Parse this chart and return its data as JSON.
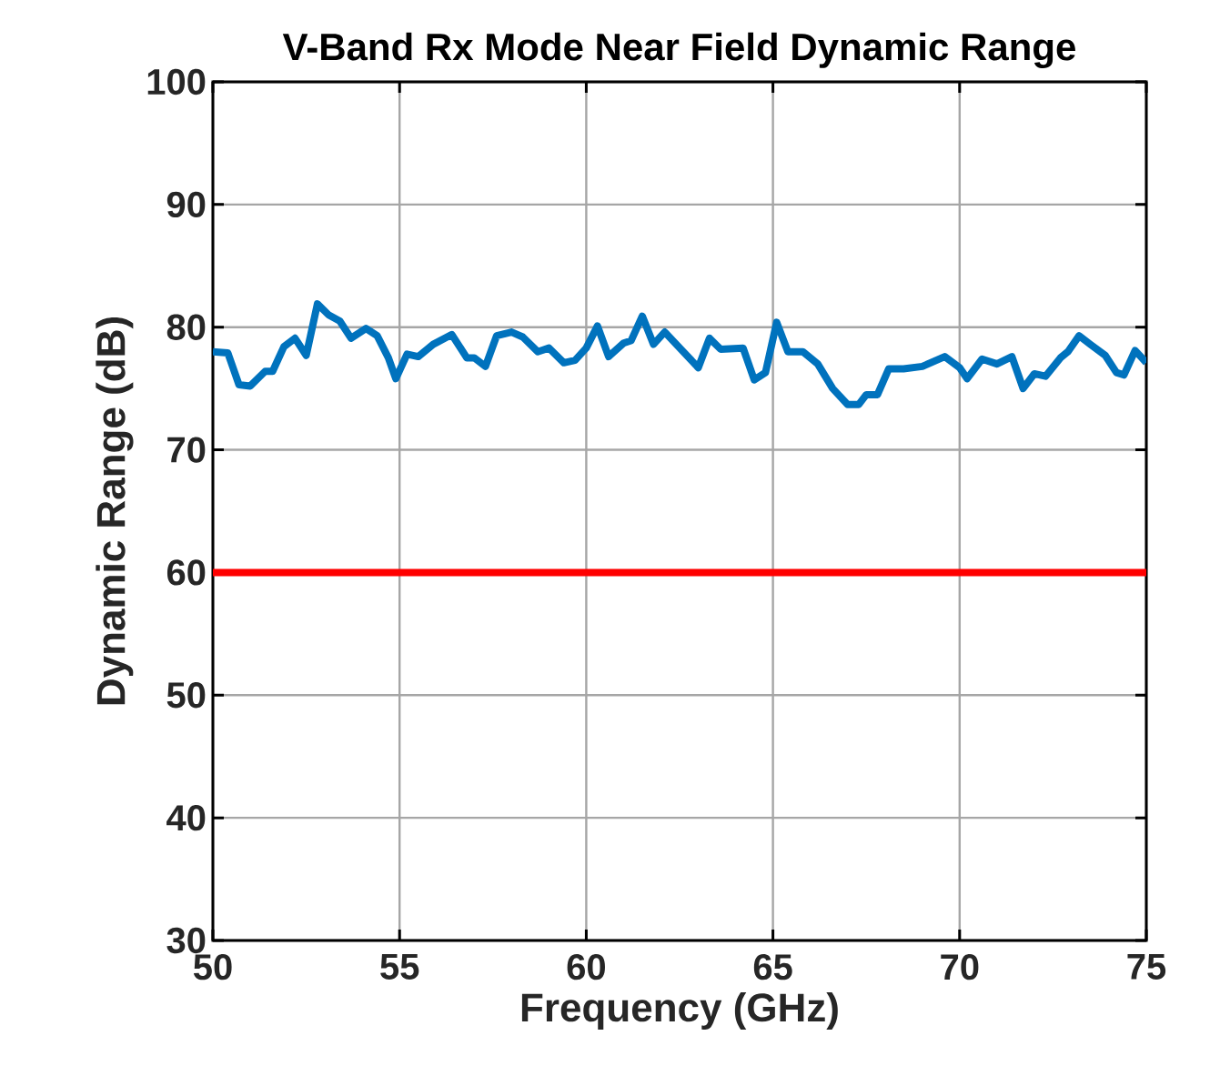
{
  "chart_data": {
    "type": "line",
    "title": "V-Band Rx Mode Near Field Dynamic Range",
    "xlabel": "Frequency (GHz)",
    "ylabel": "Dynamic Range (dB)",
    "xlim": [
      50,
      75
    ],
    "ylim": [
      30,
      100
    ],
    "xticks": [
      50,
      55,
      60,
      65,
      70,
      75
    ],
    "yticks": [
      30,
      40,
      50,
      60,
      70,
      80,
      90,
      100
    ],
    "grid": true,
    "ref_lines": [
      {
        "axis": "y",
        "value": 60,
        "color": "#ff0000"
      }
    ],
    "series": [
      {
        "color": "#0072bd",
        "x": [
          50.0,
          50.4,
          50.7,
          51.0,
          51.4,
          51.6,
          51.9,
          52.2,
          52.5,
          52.8,
          53.1,
          53.4,
          53.7,
          54.1,
          54.4,
          54.7,
          54.9,
          55.2,
          55.5,
          55.9,
          56.4,
          56.8,
          57.0,
          57.3,
          57.6,
          58.0,
          58.3,
          58.7,
          59.0,
          59.4,
          59.7,
          60.0,
          60.3,
          60.6,
          61.0,
          61.2,
          61.5,
          61.8,
          62.1,
          62.6,
          63.0,
          63.3,
          63.6,
          64.2,
          64.5,
          64.8,
          65.1,
          65.4,
          65.8,
          66.2,
          66.6,
          67.0,
          67.3,
          67.5,
          67.8,
          68.1,
          68.5,
          69.0,
          69.6,
          70.0,
          70.2,
          70.6,
          71.0,
          71.4,
          71.7,
          72.0,
          72.3,
          72.7,
          72.9,
          73.2,
          73.5,
          73.9,
          74.2,
          74.4,
          74.7,
          75.0
        ],
        "values": [
          78.0,
          77.9,
          75.3,
          75.2,
          76.4,
          76.4,
          78.4,
          79.1,
          77.7,
          81.9,
          81.0,
          80.5,
          79.1,
          79.9,
          79.3,
          77.5,
          75.8,
          77.8,
          77.6,
          78.6,
          79.4,
          77.5,
          77.5,
          76.8,
          79.3,
          79.6,
          79.2,
          78.0,
          78.3,
          77.1,
          77.3,
          78.3,
          80.1,
          77.6,
          78.7,
          78.9,
          80.9,
          78.6,
          79.6,
          78.0,
          76.7,
          79.1,
          78.2,
          78.3,
          75.7,
          76.3,
          80.4,
          78.0,
          78.0,
          77.0,
          75.0,
          73.7,
          73.7,
          74.5,
          74.5,
          76.6,
          76.6,
          76.8,
          77.6,
          76.7,
          75.8,
          77.4,
          77.0,
          77.6,
          75.0,
          76.2,
          76.0,
          77.5,
          78.0,
          79.3,
          78.6,
          77.7,
          76.3,
          76.1,
          78.1,
          77.1
        ]
      }
    ]
  }
}
